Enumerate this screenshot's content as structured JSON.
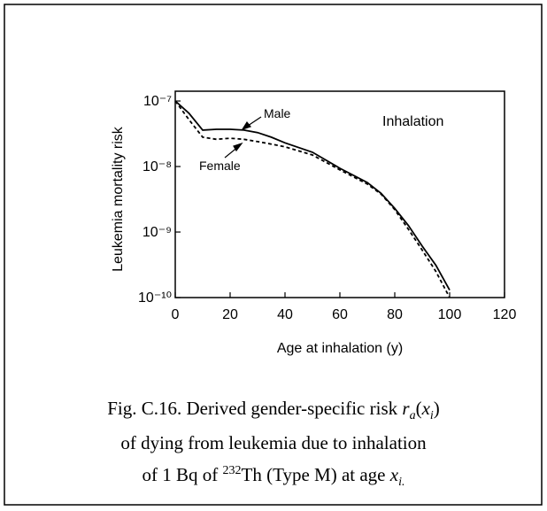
{
  "chart_data": {
    "type": "line",
    "y_label": "Leukemia mortality risk",
    "x_label": "Age at inhalation (y)",
    "annotations": [
      "Male",
      "Female",
      "Inhalation"
    ],
    "x": [
      0,
      5,
      10,
      15,
      20,
      25,
      30,
      35,
      40,
      50,
      60,
      70,
      75,
      80,
      85,
      90,
      95,
      100
    ],
    "series": [
      {
        "name": "Male",
        "color": "#000000",
        "dash": false,
        "values": [
          1e-07,
          6.5e-08,
          3.6e-08,
          3.7e-08,
          3.7e-08,
          3.6e-08,
          3.3e-08,
          2.8e-08,
          2.3e-08,
          1.65e-08,
          9.4e-09,
          5.7e-09,
          3.9e-09,
          2.3e-09,
          1.25e-09,
          6.1e-10,
          3.1e-10,
          1.3e-10
        ]
      },
      {
        "name": "Female",
        "color": "#000000",
        "dash": true,
        "values": [
          1e-07,
          5.2e-08,
          2.8e-08,
          2.6e-08,
          2.7e-08,
          2.6e-08,
          2.4e-08,
          2.2e-08,
          2e-08,
          1.5e-08,
          8.9e-09,
          5.4e-09,
          3.8e-09,
          2.2e-09,
          1.1e-09,
          5.3e-10,
          2.5e-10,
          1e-10
        ]
      }
    ],
    "xlim": [
      0,
      120
    ],
    "xticks": [
      0,
      20,
      40,
      60,
      80,
      100,
      120
    ],
    "ylim": [
      1e-10,
      1.41e-07
    ],
    "log_y": true,
    "yticks": [
      {
        "value": 1e-10,
        "label": "10⁻¹⁰"
      },
      {
        "value": 1e-09,
        "label": "10⁻⁹"
      },
      {
        "value": 1e-08,
        "label": "10⁻⁸"
      },
      {
        "value": 1e-07,
        "label": "10⁻⁷"
      }
    ],
    "caption": [
      [
        {
          "text": "Fig. C.16. Derived gender-specific risk "
        },
        {
          "text": "r",
          "style": "italic"
        },
        {
          "text": "a",
          "style": "sub"
        },
        {
          "text": "("
        },
        {
          "text": "x",
          "style": "italic"
        },
        {
          "text": "i",
          "style": "sub"
        },
        {
          "text": ")"
        }
      ],
      [
        {
          "text": "of dying from leukemia due to inhalation"
        }
      ],
      [
        {
          "text": "of 1 Bq of "
        },
        {
          "text": "232",
          "style": "sup"
        },
        {
          "text": "Th (Type M) at age "
        },
        {
          "text": "x",
          "style": "italic"
        },
        {
          "text": "i.",
          "style": "sub"
        }
      ]
    ]
  }
}
